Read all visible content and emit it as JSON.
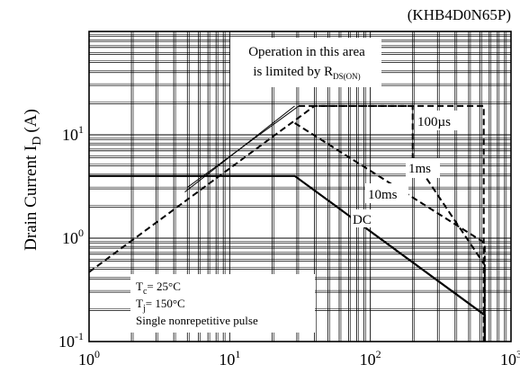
{
  "chart_data": {
    "type": "line",
    "part_number": "(KHB4D0N65P)",
    "ylabel": "Drain Current I",
    "ylabel_sub": "D",
    "ylabel_unit": "(A)",
    "x_scale": "log",
    "y_scale": "log",
    "xlim": [
      1,
      1000
    ],
    "ylim": [
      0.1,
      100
    ],
    "grid": true,
    "x_ticks": [
      {
        "value": 1,
        "base": "10",
        "exp": "0"
      },
      {
        "value": 10,
        "base": "10",
        "exp": "1"
      },
      {
        "value": 100,
        "base": "10",
        "exp": "2"
      },
      {
        "value": 1000,
        "base": "10",
        "exp": "3"
      }
    ],
    "y_ticks": [
      {
        "value": 0.1,
        "base": "10",
        "exp": "-1"
      },
      {
        "value": 1,
        "base": "10",
        "exp": "0"
      },
      {
        "value": 10,
        "base": "10",
        "exp": "1"
      }
    ],
    "series": [
      {
        "name": "DC",
        "style": "solid",
        "points": [
          [
            1,
            4.0
          ],
          [
            29,
            4.0
          ],
          [
            650,
            0.18
          ],
          [
            650,
            0.1
          ]
        ]
      },
      {
        "name": "1ms",
        "style": "dashed",
        "points": [
          [
            1,
            0.47
          ],
          [
            40,
            19
          ],
          [
            200,
            19
          ],
          [
            200,
            6
          ],
          [
            650,
            0.55
          ],
          [
            650,
            0.1
          ]
        ]
      },
      {
        "name": "100µs",
        "style": "dashed",
        "points": [
          [
            31,
            19
          ],
          [
            640,
            19
          ],
          [
            640,
            0.1
          ]
        ]
      },
      {
        "name": "10ms",
        "style": "dashed",
        "points": [
          [
            29,
            13
          ],
          [
            650,
            0.9
          ],
          [
            650,
            0.1
          ]
        ]
      },
      {
        "name": "rds",
        "style": "thin",
        "points": [
          [
            4.8,
            2.8
          ],
          [
            29,
            19
          ]
        ]
      },
      {
        "name": "rds2",
        "style": "thin",
        "points": [
          [
            5.0,
            3.1
          ],
          [
            31,
            19
          ]
        ]
      }
    ],
    "annotations": {
      "rds_line1": "Operation in this area",
      "rds_line2": "is limited by R",
      "rds_sub": "DS(ON)",
      "label_100us": "100µs",
      "label_1ms": "1ms",
      "label_10ms": "10ms",
      "label_dc": "DC",
      "tc_main": "T",
      "tc_sub": "c",
      "tc_val": "= 25",
      "tc_unit": "°C",
      "tj_main": "T",
      "tj_sub": "j",
      "tj_val": "= 150",
      "tj_unit": "°C",
      "pulse": "Single nonrepetitive pulse"
    }
  }
}
